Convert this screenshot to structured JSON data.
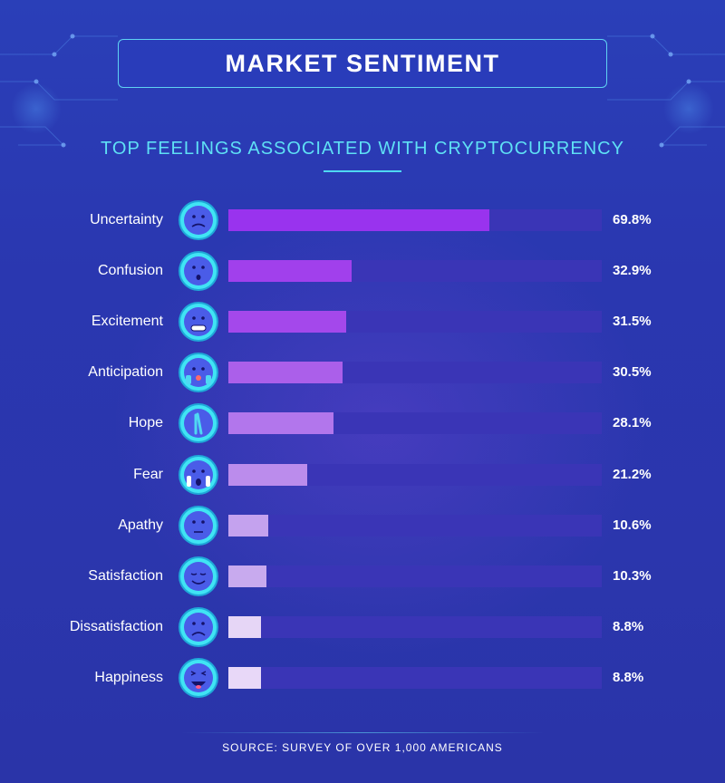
{
  "header": {
    "title": "MARKET SENTIMENT",
    "subtitle": "TOP FEELINGS ASSOCIATED WITH CRYPTOCURRENCY"
  },
  "colors": {
    "background": "#2a37b0",
    "accent": "#5fe0f5",
    "track": "#3a35b6",
    "bar_gradient": [
      "#9933ee",
      "#a455ea",
      "#b27bea",
      "#c6a8ee",
      "#e6d4f6"
    ]
  },
  "chart_data": {
    "type": "bar",
    "orientation": "horizontal",
    "title": "TOP FEELINGS ASSOCIATED WITH CRYPTOCURRENCY",
    "xlim": [
      0,
      100
    ],
    "unit": "%",
    "grid": false,
    "categories": [
      "Uncertainty",
      "Confusion",
      "Excitement",
      "Anticipation",
      "Hope",
      "Fear",
      "Apathy",
      "Satisfaction",
      "Dissatisfaction",
      "Happiness"
    ],
    "values": [
      69.8,
      32.9,
      31.5,
      30.5,
      28.1,
      21.2,
      10.6,
      10.3,
      8.8,
      8.8
    ],
    "value_labels": [
      "69.8%",
      "32.9%",
      "31.5%",
      "30.5%",
      "28.1%",
      "21.2%",
      "10.6%",
      "10.3%",
      "8.8%",
      "8.8%"
    ],
    "bar_colors": [
      "#9933ee",
      "#a140ec",
      "#a448eb",
      "#ab5fea",
      "#b276ec",
      "#bb8cec",
      "#c4a2ee",
      "#c8aaee",
      "#e6d6f6",
      "#e8d8f8"
    ],
    "icons": [
      "worried-face-icon",
      "confused-face-icon",
      "grinning-face-icon",
      "hands-over-face-icon",
      "crossed-fingers-icon",
      "screaming-face-icon",
      "neutral-face-icon",
      "relieved-face-icon",
      "crying-face-icon",
      "laughing-face-icon"
    ]
  },
  "footer": {
    "source": "SOURCE: SURVEY OF OVER 1,000 AMERICANS"
  }
}
